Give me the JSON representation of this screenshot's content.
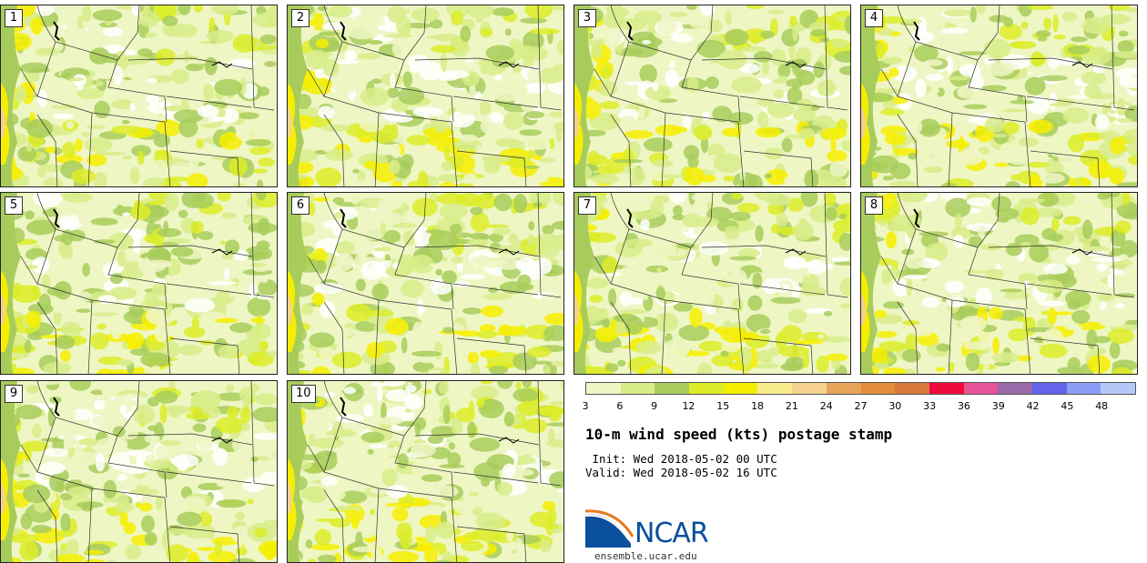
{
  "panels": [
    {
      "label": "1"
    },
    {
      "label": "2"
    },
    {
      "label": "3"
    },
    {
      "label": "4"
    },
    {
      "label": "5"
    },
    {
      "label": "6"
    },
    {
      "label": "7"
    },
    {
      "label": "8"
    },
    {
      "label": "9"
    },
    {
      "label": "10"
    }
  ],
  "colorbar": {
    "colors": [
      "#eef6c4",
      "#d8ec8a",
      "#a8cc5c",
      "#dcec28",
      "#f6ee00",
      "#f9ec8c",
      "#f4d28e",
      "#e8a458",
      "#e48c3a",
      "#d87a3c",
      "#ee0a3a",
      "#e8549a",
      "#9a6aa8",
      "#6464ec",
      "#8c9cf6",
      "#b4c8f8"
    ],
    "labels": [
      "3",
      "6",
      "9",
      "12",
      "15",
      "18",
      "21",
      "24",
      "27",
      "30",
      "33",
      "36",
      "39",
      "42",
      "45",
      "48"
    ]
  },
  "title": "10-m wind speed (kts) postage stamp",
  "init": " Init: Wed 2018-05-02 00 UTC",
  "valid": "Valid: Wed 2018-05-02 16 UTC",
  "logo": {
    "text": "NCAR",
    "colors": {
      "blue": "#0a4f9c",
      "orange": "#e87a1c"
    }
  },
  "site": "ensemble.ucar.edu"
}
